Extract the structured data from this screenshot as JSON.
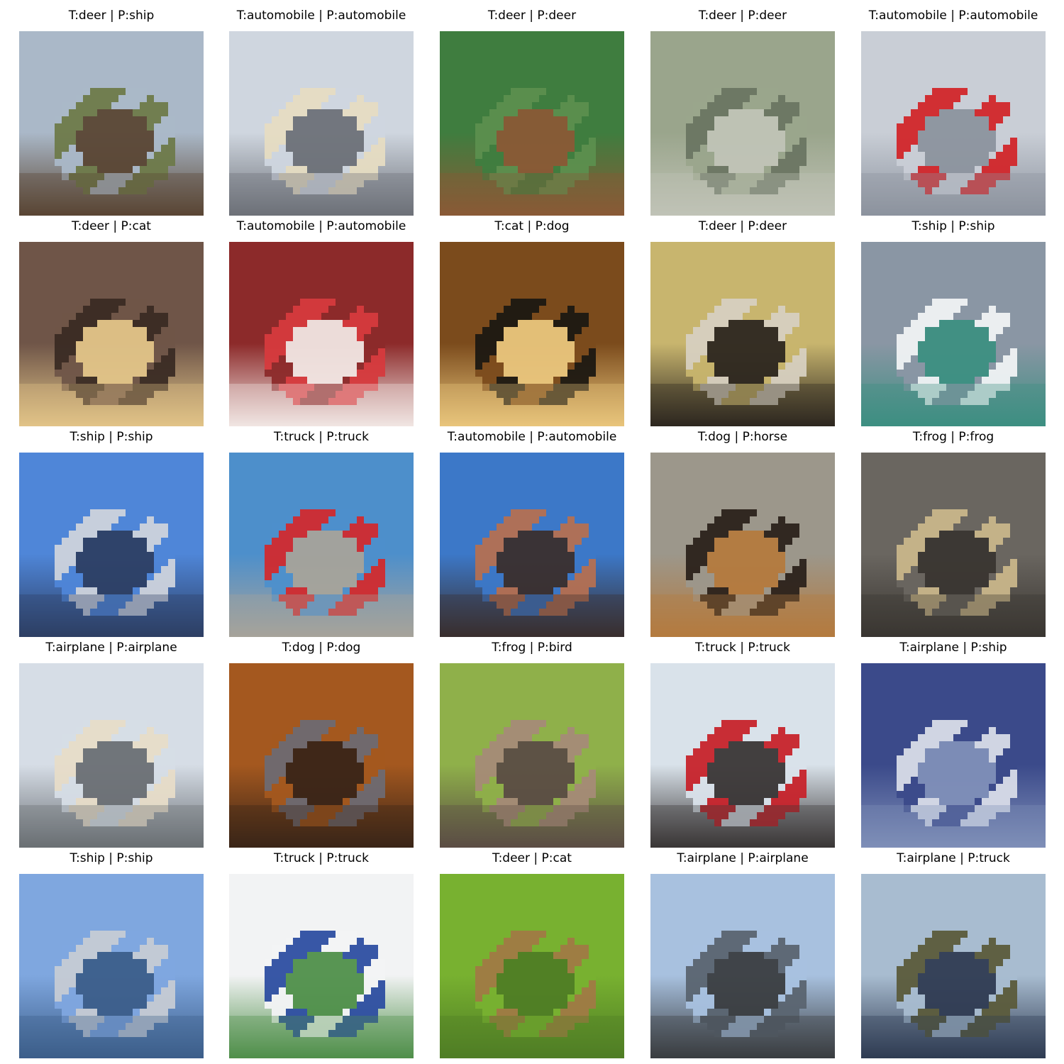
{
  "grid": [
    {
      "true": "deer",
      "pred": "ship",
      "title": "T:deer | P:ship",
      "scene": "deer-field-sky",
      "palette": {
        "a": "#aab8c8",
        "b": "#6e7a4a",
        "c": "#5a4634"
      }
    },
    {
      "true": "automobile",
      "pred": "automobile",
      "title": "T:automobile | P:automobile",
      "scene": "beige-car",
      "palette": {
        "a": "#cfd6df",
        "b": "#e6dcc2",
        "c": "#6d7178"
      }
    },
    {
      "true": "deer",
      "pred": "deer",
      "title": "T:deer | P:deer",
      "scene": "deer-grass",
      "palette": {
        "a": "#3f7d3f",
        "b": "#5c8f4e",
        "c": "#8a5a36"
      }
    },
    {
      "true": "deer",
      "pred": "deer",
      "title": "T:deer | P:deer",
      "scene": "deer-closeup",
      "palette": {
        "a": "#9aa58c",
        "b": "#6a7562",
        "c": "#c0c3b6"
      }
    },
    {
      "true": "automobile",
      "pred": "automobile",
      "title": "T:automobile | P:automobile",
      "scene": "red-car",
      "palette": {
        "a": "#c9ced6",
        "b": "#d2262a",
        "c": "#8c939e"
      }
    },
    {
      "true": "deer",
      "pred": "cat",
      "title": "T:deer | P:cat",
      "scene": "deer-brown",
      "palette": {
        "a": "#6f5548",
        "b": "#3a2b24",
        "c": "#e1c488"
      }
    },
    {
      "true": "automobile",
      "pred": "automobile",
      "title": "T:automobile | P:automobile",
      "scene": "red-car-2",
      "palette": {
        "a": "#8c2a2a",
        "b": "#d63a3d",
        "c": "#f1e6e3"
      }
    },
    {
      "true": "cat",
      "pred": "dog",
      "title": "T:cat | P:dog",
      "scene": "black-cat",
      "palette": {
        "a": "#7b4b1c",
        "b": "#1c1812",
        "c": "#e9c57c"
      }
    },
    {
      "true": "deer",
      "pred": "deer",
      "title": "T:deer | P:deer",
      "scene": "elk",
      "palette": {
        "a": "#c8b56e",
        "b": "#d7d0c0",
        "c": "#2d2720"
      }
    },
    {
      "true": "ship",
      "pred": "ship",
      "title": "T:ship | P:ship",
      "scene": "boat-dock",
      "palette": {
        "a": "#8a96a4",
        "b": "#f0f2f4",
        "c": "#3d8f82"
      }
    },
    {
      "true": "ship",
      "pred": "ship",
      "title": "T:ship | P:ship",
      "scene": "ferry",
      "palette": {
        "a": "#4f86d8",
        "b": "#cdd3dc",
        "c": "#2d3f64"
      }
    },
    {
      "true": "truck",
      "pred": "truck",
      "title": "T:truck | P:truck",
      "scene": "tow-truck",
      "palette": {
        "a": "#4d8fcb",
        "b": "#d12a2e",
        "c": "#a7a39a"
      }
    },
    {
      "true": "automobile",
      "pred": "automobile",
      "title": "T:automobile | P:automobile",
      "scene": "blue-car",
      "palette": {
        "a": "#3c78c8",
        "b": "#b47052",
        "c": "#3a2f2e"
      }
    },
    {
      "true": "dog",
      "pred": "horse",
      "title": "T:dog | P:horse",
      "scene": "dog-front",
      "palette": {
        "a": "#9c978b",
        "b": "#2b221b",
        "c": "#b47a3e"
      }
    },
    {
      "true": "frog",
      "pred": "frog",
      "title": "T:frog | P:frog",
      "scene": "frog",
      "palette": {
        "a": "#6a6660",
        "b": "#c9b68a",
        "c": "#3a3632"
      }
    },
    {
      "true": "airplane",
      "pred": "airplane",
      "title": "T:airplane | P:airplane",
      "scene": "airport",
      "palette": {
        "a": "#d6dde6",
        "b": "#e7dcc8",
        "c": "#6a6f74"
      }
    },
    {
      "true": "dog",
      "pred": "dog",
      "title": "T:dog | P:dog",
      "scene": "brown-dog",
      "palette": {
        "a": "#a4581f",
        "b": "#6e6a72",
        "c": "#3a2518"
      }
    },
    {
      "true": "frog",
      "pred": "bird",
      "title": "T:frog | P:bird",
      "scene": "toad",
      "palette": {
        "a": "#8fb04a",
        "b": "#a58b77",
        "c": "#5b4d44"
      }
    },
    {
      "true": "truck",
      "pred": "truck",
      "title": "T:truck | P:truck",
      "scene": "dump-truck",
      "palette": {
        "a": "#d9e2ea",
        "b": "#c7232b",
        "c": "#3a3636"
      }
    },
    {
      "true": "airplane",
      "pred": "ship",
      "title": "T:airplane | P:ship",
      "scene": "jet-blue",
      "palette": {
        "a": "#3b4a8a",
        "b": "#d8dce8",
        "c": "#7f8fb8"
      }
    },
    {
      "true": "ship",
      "pred": "ship",
      "title": "T:ship | P:ship",
      "scene": "cruise-ship",
      "palette": {
        "a": "#7fa7df",
        "b": "#c6cbd4",
        "c": "#3c5e8a"
      }
    },
    {
      "true": "truck",
      "pred": "truck",
      "title": "T:truck | P:truck",
      "scene": "blue-truck",
      "palette": {
        "a": "#f2f3f4",
        "b": "#2d4ea1",
        "c": "#4f8f4a"
      }
    },
    {
      "true": "deer",
      "pred": "cat",
      "title": "T:deer | P:cat",
      "scene": "fawn-green",
      "palette": {
        "a": "#78b130",
        "b": "#a07a45",
        "c": "#4f7d25"
      }
    },
    {
      "true": "airplane",
      "pred": "airplane",
      "title": "T:airplane | P:airplane",
      "scene": "military-jets",
      "palette": {
        "a": "#a8c1df",
        "b": "#5a6470",
        "c": "#3a3d40"
      }
    },
    {
      "true": "airplane",
      "pred": "truck",
      "title": "T:airplane | P:truck",
      "scene": "jet-ground",
      "palette": {
        "a": "#a8bcd0",
        "b": "#5b5b3b",
        "c": "#2f3b52"
      }
    }
  ]
}
